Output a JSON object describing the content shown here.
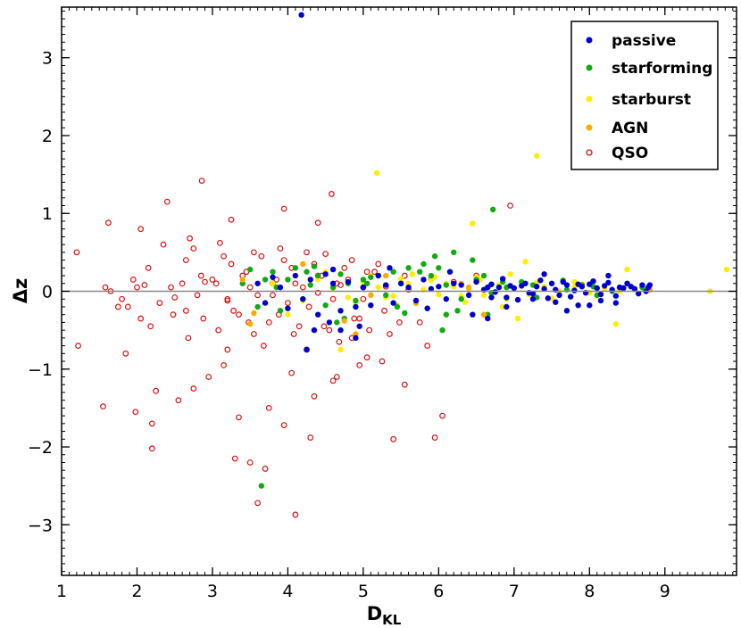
{
  "chart_data": {
    "type": "scatter",
    "xlabel": "D",
    "xlabel_subscript": "KL",
    "ylabel": "Δz",
    "xlim": [
      1.0,
      9.95
    ],
    "ylim": [
      -3.65,
      3.65
    ],
    "x_ticks": [
      1,
      2,
      3,
      4,
      5,
      6,
      7,
      8,
      9
    ],
    "x_tick_labels": [
      "1",
      "2",
      "3",
      "4",
      "5",
      "6",
      "7",
      "8",
      "9"
    ],
    "y_ticks": [
      -3,
      -2,
      -1,
      0,
      1,
      2,
      3
    ],
    "y_tick_labels": [
      "−3",
      "−2",
      "−1",
      "0",
      "1",
      "2",
      "3"
    ],
    "reference_line_y": 0,
    "grid": false,
    "legend": {
      "position": "top-right"
    },
    "series": [
      {
        "name": "passive",
        "color": "#0000cc",
        "marker": "filled-circle",
        "x": [
          4.18,
          8.78,
          8.7,
          8.6,
          8.5,
          8.4,
          8.3,
          8.2,
          8.1,
          8.0,
          7.9,
          7.8,
          7.7,
          7.6,
          7.5,
          7.4,
          7.3,
          7.2,
          7.1,
          7.0,
          6.9,
          6.8,
          6.7,
          6.6,
          6.5,
          6.4,
          6.3,
          6.2,
          6.1,
          6.0,
          5.9,
          5.8,
          5.7,
          5.6,
          5.5,
          5.4,
          5.3,
          5.2,
          5.1,
          5.0,
          4.9,
          4.8,
          4.7,
          4.6,
          4.5,
          4.4,
          4.3,
          4.2,
          4.1,
          4.0,
          3.9,
          3.8,
          3.7,
          3.6,
          8.8,
          8.75,
          8.65,
          8.55,
          8.45,
          8.35,
          8.25,
          8.15,
          8.05,
          7.95,
          7.85,
          7.75,
          7.65,
          7.55,
          7.45,
          7.35,
          7.25,
          7.15,
          7.05,
          6.95,
          6.85,
          6.75,
          6.65,
          8.35,
          8.15,
          7.85,
          7.55,
          7.25,
          6.65,
          6.45,
          6.15,
          5.85,
          5.35,
          4.95,
          4.55,
          4.35,
          4.25,
          8.25,
          7.7,
          7.4,
          6.9,
          4.9,
          4.7,
          4.6,
          8.0,
          6.7
        ],
        "y": [
          3.55,
          0.05,
          0.08,
          0.03,
          0.1,
          0.05,
          0.02,
          0.07,
          0.04,
          0.09,
          0.06,
          0.01,
          0.08,
          -0.05,
          0.1,
          0.03,
          0.06,
          -0.02,
          0.07,
          0.04,
          -0.08,
          0.05,
          0.09,
          0.02,
          0.12,
          -0.05,
          0.08,
          0.1,
          -0.1,
          0.06,
          0.03,
          0.15,
          -0.12,
          0.05,
          0.1,
          -0.15,
          0.08,
          0.2,
          -0.18,
          0.05,
          -0.2,
          0.12,
          -0.25,
          0.1,
          0.22,
          -0.3,
          0.15,
          -0.1,
          0.2,
          -0.22,
          0.05,
          0.18,
          -0.15,
          0.1,
          0.08,
          0.0,
          -0.03,
          0.06,
          0.04,
          -0.06,
          0.11,
          -0.04,
          0.13,
          -0.02,
          0.09,
          -0.07,
          0.12,
          0.02,
          -0.09,
          0.14,
          -0.03,
          0.1,
          -0.11,
          0.07,
          0.16,
          -0.01,
          0.05,
          -0.15,
          -0.12,
          -0.18,
          -0.14,
          -0.1,
          -0.35,
          -0.3,
          0.25,
          -0.22,
          0.3,
          -0.45,
          -0.4,
          -0.5,
          -0.75,
          0.2,
          -0.25,
          0.22,
          -0.2,
          -0.6,
          -0.5,
          0.28,
          -0.18,
          -0.08
        ]
      },
      {
        "name": "starforming",
        "color": "#11aa11",
        "marker": "filled-circle",
        "x": [
          6.72,
          3.65,
          6.05,
          6.65,
          6.45,
          6.2,
          6.0,
          5.8,
          5.6,
          5.4,
          5.2,
          5.0,
          4.8,
          4.6,
          4.4,
          4.2,
          4.0,
          3.8,
          3.6,
          3.4,
          8.7,
          8.5,
          8.3,
          8.1,
          7.9,
          7.7,
          7.5,
          7.3,
          7.1,
          6.9,
          6.7,
          6.5,
          6.3,
          6.1,
          5.9,
          5.7,
          5.5,
          5.3,
          5.1,
          4.9,
          4.7,
          4.5,
          4.3,
          4.1,
          3.9,
          3.7,
          3.5,
          6.6,
          6.1,
          5.75,
          5.45,
          5.05,
          4.65,
          4.25,
          3.85,
          6.85,
          7.25,
          7.65,
          8.05,
          8.45,
          6.25,
          5.95,
          5.55,
          4.75,
          4.35
        ],
        "y": [
          1.05,
          -2.5,
          -0.5,
          -0.3,
          0.4,
          0.5,
          0.3,
          0.35,
          0.3,
          0.25,
          0.2,
          0.15,
          0.1,
          0.05,
          0.2,
          -0.1,
          0.15,
          0.25,
          -0.2,
          0.1,
          0.05,
          0.1,
          0.0,
          -0.05,
          0.08,
          0.02,
          0.1,
          -0.08,
          0.12,
          0.05,
          -0.02,
          0.15,
          -0.1,
          0.08,
          0.2,
          -0.15,
          0.1,
          -0.05,
          0.18,
          -0.12,
          0.22,
          -0.18,
          0.08,
          0.3,
          -0.25,
          0.15,
          0.28,
          0.2,
          -0.3,
          0.25,
          -0.2,
          0.1,
          -0.4,
          0.25,
          0.05,
          0.12,
          0.08,
          0.14,
          0.06,
          0.04,
          -0.25,
          0.45,
          -0.28,
          -0.35,
          0.32
        ]
      },
      {
        "name": "starburst",
        "color": "#ffee00",
        "marker": "filled-circle",
        "x": [
          5.18,
          7.3,
          6.45,
          9.82,
          9.6,
          8.35,
          8.5,
          6.95,
          6.55,
          7.05,
          8.8,
          8.6,
          8.4,
          8.2,
          8.0,
          7.8,
          7.6,
          7.4,
          7.2,
          7.0,
          6.8,
          6.6,
          6.4,
          6.2,
          6.0,
          5.8,
          5.6,
          5.4,
          5.2,
          5.0,
          4.8,
          4.6,
          4.4,
          4.2,
          4.0,
          3.8,
          7.1,
          6.9,
          6.7,
          6.5,
          6.3,
          6.1,
          5.9,
          5.7,
          5.5,
          5.3,
          5.1,
          4.9,
          4.7,
          4.5,
          8.1,
          7.9,
          7.5,
          7.3,
          7.15,
          6.85,
          6.35,
          5.95,
          5.65,
          5.45,
          7.2,
          7.8
        ],
        "y": [
          1.52,
          1.74,
          0.87,
          0.28,
          0.0,
          -0.42,
          0.28,
          0.22,
          0.15,
          -0.35,
          0.05,
          0.02,
          0.0,
          0.03,
          -0.02,
          0.05,
          0.0,
          0.06,
          -0.03,
          0.04,
          0.08,
          -0.05,
          0.03,
          0.06,
          -0.04,
          0.02,
          0.1,
          -0.06,
          0.05,
          0.12,
          -0.08,
          0.04,
          0.15,
          -0.12,
          -0.3,
          0.1,
          0.12,
          -0.1,
          0.08,
          0.18,
          -0.06,
          0.1,
          0.14,
          -0.12,
          0.16,
          -0.08,
          0.2,
          -0.15,
          -0.75,
          0.25,
          -0.06,
          0.09,
          -0.09,
          0.11,
          0.38,
          -0.2,
          -0.14,
          0.18,
          0.22,
          -0.18,
          -0.04,
          0.12
        ]
      },
      {
        "name": "AGN",
        "color": "#ffaa00",
        "marker": "filled-circle",
        "x": [
          8.8,
          8.78,
          3.55,
          4.9,
          5.3,
          5.7,
          6.3,
          4.75,
          5.1,
          6.4,
          3.5,
          6.6,
          4.2,
          3.4
        ],
        "y": [
          0.02,
          0.05,
          -0.28,
          -0.55,
          0.2,
          -0.15,
          0.1,
          -0.38,
          -0.05,
          0.05,
          -0.42,
          -0.3,
          0.35,
          0.15
        ]
      },
      {
        "name": "QSO",
        "color": "#dd1111",
        "marker": "open-circle",
        "x": [
          1.2,
          1.22,
          1.58,
          1.62,
          2.05,
          2.4,
          2.86,
          3.25,
          3.95,
          4.4,
          4.58,
          6.95,
          1.55,
          1.85,
          1.98,
          2.25,
          2.55,
          2.75,
          2.95,
          3.15,
          3.35,
          3.55,
          3.75,
          4.05,
          4.25,
          4.65,
          4.85,
          5.05,
          5.25,
          5.55,
          5.85,
          6.05,
          1.88,
          2.18,
          2.48,
          2.68,
          2.88,
          3.08,
          3.28,
          3.48,
          3.68,
          3.88,
          4.08,
          4.28,
          4.48,
          4.68,
          4.88,
          5.08,
          5.28,
          5.48,
          1.65,
          1.95,
          2.15,
          2.45,
          2.65,
          2.85,
          3.05,
          3.25,
          3.45,
          3.65,
          3.85,
          4.05,
          4.25,
          4.45,
          4.65,
          4.85,
          5.05,
          1.8,
          2.0,
          2.3,
          2.6,
          2.8,
          3.0,
          3.2,
          3.4,
          3.6,
          3.8,
          4.0,
          4.2,
          4.4,
          4.6,
          4.8,
          5.0,
          2.2,
          3.3,
          3.6,
          3.7,
          4.1,
          4.35,
          5.4,
          5.95,
          2.7,
          3.1,
          3.9,
          4.5,
          5.2,
          2.1,
          2.5,
          2.9,
          3.2,
          3.5,
          3.8,
          4.1,
          4.4,
          4.7,
          5.0,
          5.3,
          5.6,
          5.9,
          6.2,
          6.5,
          2.35,
          2.75,
          3.15,
          3.55,
          3.95,
          4.35,
          4.75,
          5.15,
          5.55,
          1.75,
          2.05,
          2.65,
          3.35,
          3.75,
          4.15,
          4.55,
          4.95,
          5.35,
          5.75,
          3.2,
          3.95,
          4.3,
          2.2,
          3.5,
          4.6,
          4.95
        ],
        "y": [
          0.5,
          -0.7,
          0.05,
          0.88,
          0.8,
          1.15,
          1.42,
          0.92,
          1.06,
          0.88,
          1.25,
          1.1,
          -1.48,
          -0.8,
          -1.55,
          -1.28,
          -1.4,
          -1.25,
          -1.1,
          -0.95,
          -1.62,
          -0.55,
          -1.5,
          -1.05,
          -0.75,
          -1.1,
          -0.6,
          -0.85,
          -0.9,
          -1.2,
          -0.7,
          -1.6,
          -0.2,
          -0.45,
          -0.3,
          -0.6,
          -0.35,
          -0.5,
          -0.25,
          -0.4,
          -0.7,
          -0.3,
          -0.55,
          -0.2,
          -0.45,
          -0.65,
          -0.35,
          -0.5,
          -0.25,
          -0.4,
          0.0,
          0.15,
          0.3,
          0.05,
          0.4,
          0.2,
          0.1,
          0.35,
          0.25,
          0.45,
          0.15,
          0.3,
          0.5,
          0.2,
          0.1,
          0.4,
          0.25,
          -0.1,
          0.05,
          -0.15,
          0.1,
          -0.05,
          0.15,
          -0.1,
          0.2,
          -0.05,
          0.1,
          -0.15,
          0.05,
          0.2,
          -0.1,
          0.15,
          0.05,
          -2.02,
          -2.15,
          -2.72,
          -2.28,
          -2.87,
          -1.35,
          -1.9,
          -1.88,
          0.68,
          0.62,
          0.55,
          0.48,
          0.35,
          0.08,
          -0.08,
          0.12,
          -0.12,
          0.05,
          -0.05,
          0.1,
          -0.02,
          0.08,
          -0.1,
          0.06,
          0.02,
          0.15,
          0.12,
          0.2,
          0.6,
          0.55,
          0.45,
          0.5,
          0.4,
          0.35,
          0.3,
          0.25,
          0.2,
          -0.2,
          -0.35,
          -0.25,
          -0.3,
          -0.4,
          -0.45,
          -0.5,
          -0.35,
          -0.55,
          -0.4,
          -0.75,
          -1.72,
          -1.88,
          -1.7,
          -2.2,
          -1.15,
          -0.95
        ]
      }
    ]
  }
}
